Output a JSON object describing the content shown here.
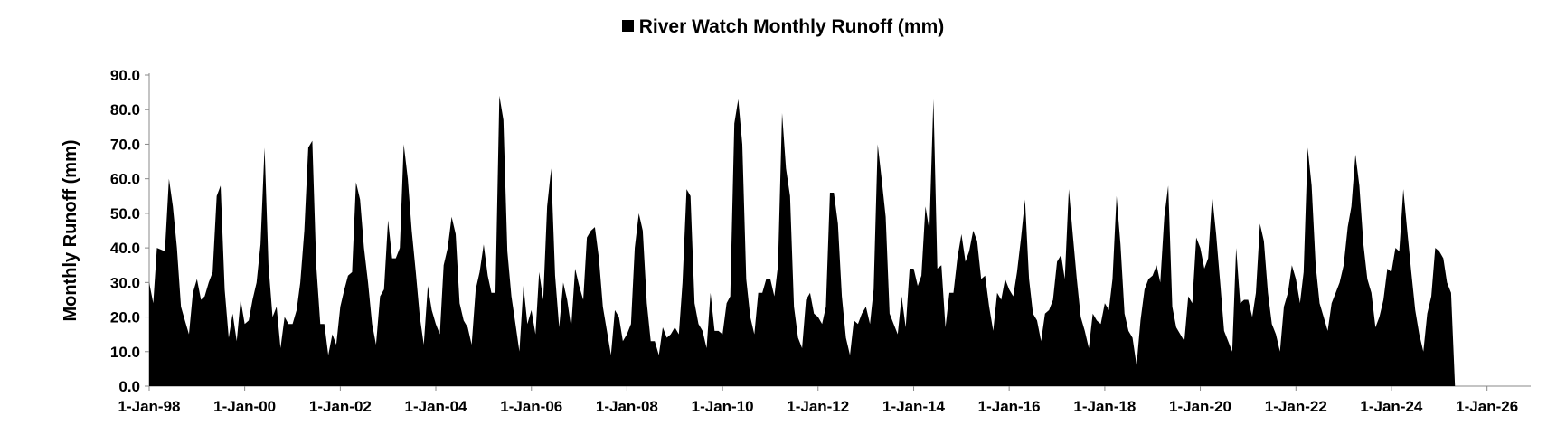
{
  "chart_data": {
    "type": "area",
    "title": "",
    "xlabel": "",
    "ylabel": "Monthly Runoff (mm)",
    "ylim": [
      0,
      90
    ],
    "y_ticks": [
      0,
      10,
      20,
      30,
      40,
      50,
      60,
      70,
      80,
      90
    ],
    "y_tick_labels": [
      "0.0",
      "10.0",
      "20.0",
      "30.0",
      "40.0",
      "50.0",
      "60.0",
      "70.0",
      "80.0",
      "90.0"
    ],
    "xlim": [
      "1998-01-01",
      "2026-12-01"
    ],
    "x_ticks": [
      "1998-01-01",
      "2000-01-01",
      "2002-01-01",
      "2004-01-01",
      "2006-01-01",
      "2008-01-01",
      "2010-01-01",
      "2012-01-01",
      "2014-01-01",
      "2016-01-01",
      "2018-01-01",
      "2020-01-01",
      "2022-01-01",
      "2024-01-01",
      "2026-01-01"
    ],
    "x_tick_labels": [
      "1-Jan-98",
      "1-Jan-00",
      "1-Jan-02",
      "1-Jan-04",
      "1-Jan-06",
      "1-Jan-08",
      "1-Jan-10",
      "1-Jan-12",
      "1-Jan-14",
      "1-Jan-16",
      "1-Jan-18",
      "1-Jan-20",
      "1-Jan-22",
      "1-Jan-24",
      "1-Jan-26"
    ],
    "grid": false,
    "legend": "top-center",
    "series": [
      {
        "name": "River Watch Monthly Runoff (mm)",
        "color": "#000000",
        "start_month": "1998-01",
        "values": [
          30,
          24,
          40,
          39.5,
          39,
          60,
          52,
          40,
          23,
          19,
          15,
          27,
          31,
          25,
          26,
          30,
          33,
          55,
          58,
          28,
          14,
          21,
          13,
          25,
          18,
          19,
          25,
          30,
          41,
          69,
          35,
          20,
          23,
          11,
          20,
          18,
          18,
          22,
          30,
          45,
          69,
          71,
          35,
          18,
          18,
          9,
          15,
          12,
          23,
          28,
          32,
          33,
          59,
          54,
          40,
          30,
          18,
          12,
          26,
          28,
          48,
          37,
          37,
          40,
          70,
          60,
          45,
          33,
          20,
          12,
          29,
          22,
          18,
          15,
          35,
          40,
          49,
          44,
          24,
          19,
          17,
          12,
          28,
          33,
          41,
          32,
          27,
          27,
          84,
          77,
          39,
          26,
          18,
          10,
          29,
          18,
          22,
          15,
          33,
          25,
          52,
          63,
          32,
          17,
          30,
          25,
          17,
          34,
          29,
          25,
          43,
          45,
          46,
          37,
          23,
          16,
          9,
          22,
          20,
          13,
          15,
          18,
          40,
          50,
          45,
          24,
          13,
          13,
          9,
          17,
          14,
          15,
          17,
          15,
          30,
          57,
          55,
          24,
          18,
          16,
          11,
          27,
          16,
          16,
          15,
          24,
          26,
          76,
          83,
          70,
          31,
          20,
          15,
          27,
          27,
          31,
          31,
          26,
          35,
          79,
          63,
          55,
          23,
          14,
          11,
          25,
          27,
          21,
          20,
          18,
          23,
          56,
          56,
          47,
          26,
          14,
          9,
          19,
          18,
          21,
          23,
          18,
          28,
          70,
          60,
          49,
          21,
          18,
          15,
          26,
          17,
          34,
          34,
          29,
          32,
          52,
          45,
          83,
          34,
          35,
          17,
          27,
          27,
          37,
          44,
          36,
          39,
          45,
          42,
          31,
          32,
          23,
          16,
          27,
          25,
          31,
          28,
          26,
          33,
          43,
          54,
          31,
          21,
          19,
          13,
          21,
          22,
          25,
          36,
          38,
          31,
          57,
          44,
          31,
          20,
          16,
          11,
          21,
          19,
          18,
          24,
          22,
          31,
          55,
          41,
          21,
          16,
          14,
          6,
          19,
          28,
          31,
          32,
          35,
          30,
          49,
          58,
          23,
          17,
          15,
          13,
          26,
          24,
          43,
          40,
          34,
          37,
          55,
          44,
          30,
          16,
          13,
          10,
          40,
          24,
          25,
          25,
          20,
          27,
          47,
          42,
          27,
          18,
          15,
          10,
          23,
          27,
          35,
          31,
          24,
          33,
          69,
          58,
          35,
          24,
          20,
          16,
          24,
          27,
          30,
          35,
          46,
          52,
          67,
          58,
          41,
          31,
          27,
          17,
          20,
          25,
          34,
          33,
          40,
          39,
          57,
          45,
          33,
          22,
          15,
          10,
          21,
          26,
          40,
          39,
          37,
          30,
          27,
          0
        ]
      }
    ]
  }
}
